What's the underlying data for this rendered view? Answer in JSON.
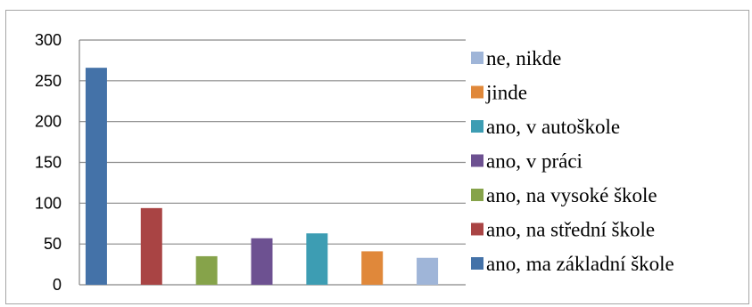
{
  "chart_data": {
    "type": "bar",
    "title": "",
    "xlabel": "",
    "ylabel": "",
    "ylim": [
      0,
      300
    ],
    "yticks": [
      "0",
      "50",
      "100",
      "150",
      "200",
      "250",
      "300"
    ],
    "grid": true,
    "legend_position": "right",
    "series": [
      {
        "name": "ano, ma základní škole",
        "value": 266,
        "color": "#4472a8"
      },
      {
        "name": "ano, na střední škole",
        "value": 94,
        "color": "#a94444"
      },
      {
        "name": "ano, na vysoké škole",
        "value": 35,
        "color": "#86a34a"
      },
      {
        "name": "ano, v práci",
        "value": 57,
        "color": "#6d5191"
      },
      {
        "name": "ano, v autoškole",
        "value": 63,
        "color": "#3d9db3"
      },
      {
        "name": "jinde",
        "value": 41,
        "color": "#e0883a"
      },
      {
        "name": "ne, nikde",
        "value": 33,
        "color": "#9fb5d8"
      }
    ],
    "legend_order": [
      "ne, nikde",
      "jinde",
      "ano, v autoškole",
      "ano, v práci",
      "ano, na vysoké škole",
      "ano, na střední škole",
      "ano, ma základní škole"
    ]
  }
}
